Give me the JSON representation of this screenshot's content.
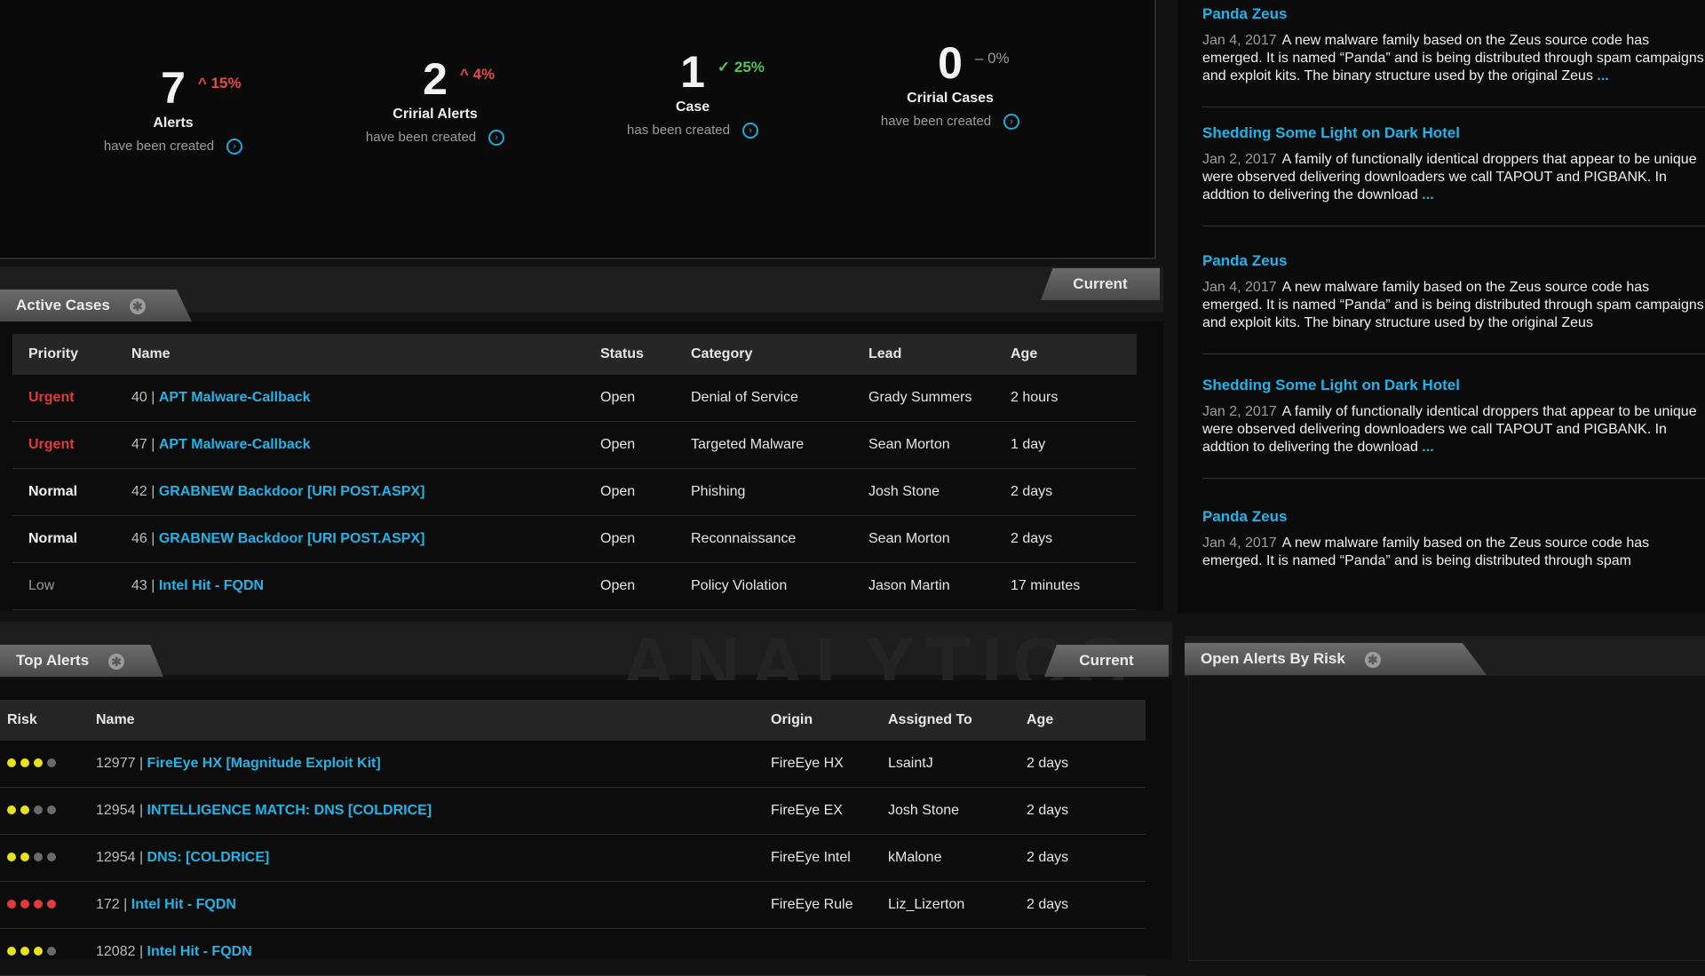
{
  "stats": [
    {
      "value": "7",
      "delta": "15%",
      "delta_dir": "up",
      "label": "Alerts",
      "sub": "have been created"
    },
    {
      "value": "2",
      "delta": "4%",
      "delta_dir": "up",
      "label": "Cririal Alerts",
      "sub": "have been created"
    },
    {
      "value": "1",
      "delta": "25%",
      "delta_dir": "down",
      "label": "Case",
      "sub": "has been created"
    },
    {
      "value": "0",
      "delta": "0%",
      "delta_dir": "flat",
      "label": "Cririal Cases",
      "sub": "have been created"
    }
  ],
  "active_cases": {
    "tab_label": "Active Cases",
    "toggle_label": "Current",
    "columns": [
      "Priority",
      "Name",
      "Status",
      "Category",
      "Lead",
      "Age"
    ],
    "rows": [
      {
        "priority": "Urgent",
        "priority_level": "urgent",
        "id": "40",
        "name": "APT Malware-Callback",
        "status": "Open",
        "category": "Denial of Service",
        "lead": "Grady Summers",
        "age": "2 hours"
      },
      {
        "priority": "Urgent",
        "priority_level": "urgent",
        "id": "47",
        "name": "APT Malware-Callback",
        "status": "Open",
        "category": "Targeted Malware",
        "lead": "Sean Morton",
        "age": "1 day"
      },
      {
        "priority": "Normal",
        "priority_level": "normal",
        "id": "42",
        "name": "GRABNEW Backdoor [URI POST.ASPX]",
        "status": "Open",
        "category": "Phishing",
        "lead": "Josh Stone",
        "age": "2 days"
      },
      {
        "priority": "Normal",
        "priority_level": "normal",
        "id": "46",
        "name": "GRABNEW Backdoor [URI POST.ASPX]",
        "status": "Open",
        "category": "Reconnaissance",
        "lead": "Sean Morton",
        "age": "2 days"
      },
      {
        "priority": "Low",
        "priority_level": "low",
        "id": "43",
        "name": "Intel Hit - FQDN",
        "status": "Open",
        "category": "Policy Violation",
        "lead": "Jason Martin",
        "age": "17 minutes"
      }
    ]
  },
  "watermark": "ANALYTICS",
  "top_alerts": {
    "tab_label": "Top Alerts",
    "toggle_label": "Current",
    "columns": [
      "Risk",
      "Name",
      "Origin",
      "Assigned To",
      "Age"
    ],
    "rows": [
      {
        "risk": [
          "yellow",
          "yellow",
          "yellow",
          "gray"
        ],
        "id": "12977",
        "name": "FireEye HX [Magnitude Exploit Kit]",
        "origin": "FireEye HX",
        "assigned": "LsaintJ",
        "age": "2  days"
      },
      {
        "risk": [
          "yellow",
          "yellow",
          "gray",
          "gray"
        ],
        "id": "12954",
        "name": "INTELLIGENCE MATCH: DNS [COLDRICE]",
        "origin": "FireEye EX",
        "assigned": "Josh Stone",
        "age": "2 days"
      },
      {
        "risk": [
          "yellow",
          "yellow",
          "gray",
          "gray"
        ],
        "id": "12954",
        "name": "DNS: [COLDRICE]",
        "origin": "FireEye Intel",
        "assigned": "kMalone",
        "age": "2 days"
      },
      {
        "risk": [
          "red",
          "red",
          "red",
          "red"
        ],
        "id": "172",
        "name": "Intel Hit - FQDN",
        "origin": "FireEye Rule",
        "assigned": "Liz_Lizerton",
        "age": "2 days"
      },
      {
        "risk": [
          "yellow",
          "yellow",
          "yellow",
          "gray"
        ],
        "id": "12082",
        "name": "Intel Hit - FQDN",
        "origin": "",
        "assigned": "",
        "age": ""
      }
    ]
  },
  "open_alerts_by_risk": {
    "tab_label": "Open Alerts By Risk"
  },
  "feed": [
    {
      "title": "Panda Zeus",
      "date": "Jan 4, 2017",
      "body": "A new malware family based on the Zeus source code has emerged. It is named “Panda” and is being distributed through spam campaigns and exploit kits. The binary structure used by the original Zeus",
      "more": "..."
    },
    {
      "title": "Shedding Some Light on Dark Hotel",
      "date": "Jan 2, 2017",
      "body": "A family of functionally identical droppers that appear to be unique were observed delivering downloaders we call TAPOUT and PIGBANK. In addtion to delivering the download",
      "more": "..."
    },
    {
      "title": "Panda Zeus",
      "date": "Jan 4, 2017",
      "body": "A new malware family based on the Zeus source code has emerged. It is named “Panda” and is being distributed through spam campaigns and exploit kits. The binary structure used by the original Zeus",
      "more": ""
    },
    {
      "title": "Shedding Some Light on Dark Hotel",
      "date": "Jan 2, 2017",
      "body": "A family of functionally identical droppers that appear to be unique were observed delivering downloaders we call TAPOUT and PIGBANK. In addtion to delivering the download",
      "more": "..."
    },
    {
      "title": "Panda Zeus",
      "date": "Jan 4, 2017",
      "body": "A new malware family based on the Zeus source code has emerged. It is named “Panda” and is being distributed through spam",
      "more": ""
    }
  ],
  "icons": {
    "info": "info-circle-icon",
    "gear": "gear-icon",
    "caret_up": "caret-up-icon",
    "caret_down": "caret-down-icon"
  },
  "colors": {
    "link": "#22b4e6",
    "urgent": "#e23a3a",
    "delta_up": "#e84a4a",
    "delta_down": "#56c25a",
    "risk_yellow": "#e7e219",
    "risk_red": "#e23a3a",
    "risk_gray": "#6a6a6a"
  }
}
